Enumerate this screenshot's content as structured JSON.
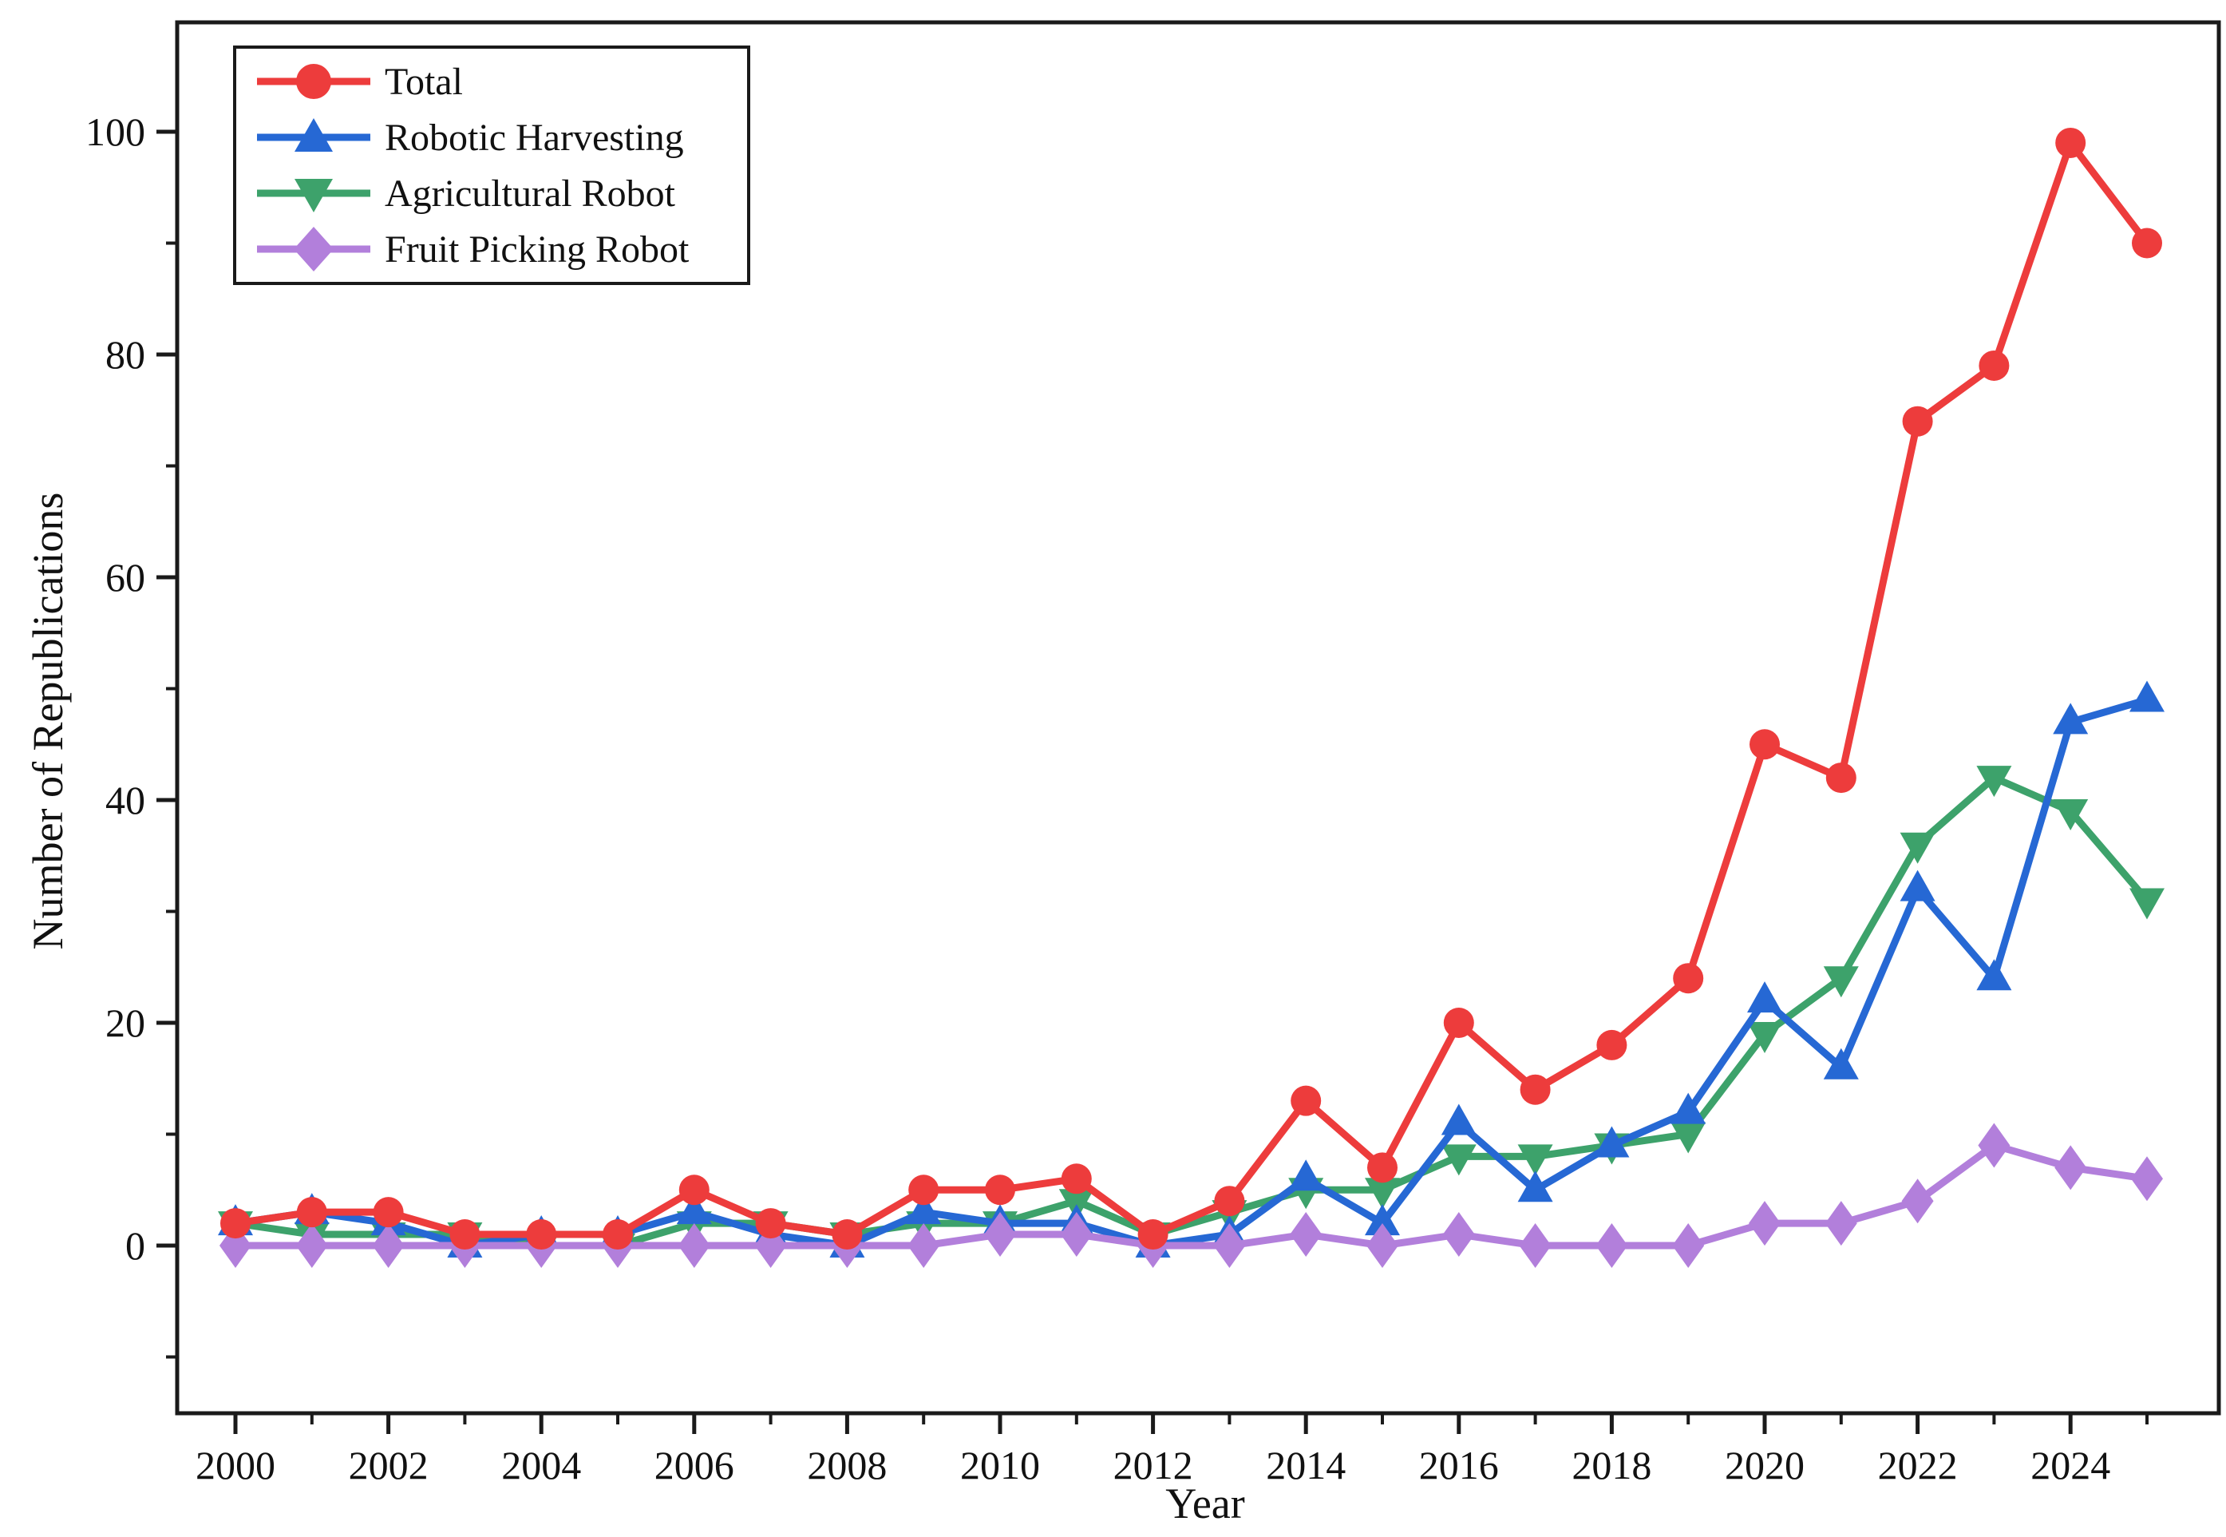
{
  "chart_data": {
    "type": "line",
    "title": "",
    "xlabel": "Year",
    "ylabel": "Number of Republications",
    "x": [
      2000,
      2001,
      2002,
      2003,
      2004,
      2005,
      2006,
      2007,
      2008,
      2009,
      2010,
      2011,
      2012,
      2013,
      2014,
      2015,
      2016,
      2017,
      2018,
      2019,
      2020,
      2021,
      2022,
      2023,
      2024,
      2025
    ],
    "series": [
      {
        "name": "Total",
        "marker": "circle",
        "color": "#ED3C3C",
        "values": [
          2,
          3,
          3,
          1,
          1,
          1,
          5,
          2,
          1,
          5,
          5,
          6,
          1,
          4,
          13,
          7,
          20,
          14,
          18,
          24,
          45,
          42,
          74,
          79,
          99,
          90
        ]
      },
      {
        "name": "Robotic Harvesting",
        "marker": "triangle-up",
        "color": "#2668D4",
        "values": [
          2,
          3,
          2,
          0,
          1,
          1,
          3,
          1,
          0,
          3,
          2,
          2,
          0,
          1,
          6,
          2,
          11,
          5,
          9,
          12,
          22,
          16,
          32,
          24,
          47,
          49
        ]
      },
      {
        "name": "Agricultural Robot",
        "marker": "triangle-down",
        "color": "#3DA26B",
        "values": [
          2,
          1,
          1,
          1,
          0,
          0,
          2,
          2,
          1,
          2,
          2,
          4,
          1,
          3,
          5,
          5,
          8,
          8,
          9,
          10,
          19,
          24,
          36,
          42,
          39,
          31
        ]
      },
      {
        "name": "Fruit Picking Robot",
        "marker": "diamond",
        "color": "#B27FDB",
        "values": [
          0,
          0,
          0,
          0,
          0,
          0,
          0,
          0,
          0,
          0,
          1,
          1,
          0,
          0,
          1,
          0,
          1,
          0,
          0,
          0,
          2,
          2,
          4,
          9,
          7,
          6
        ]
      }
    ],
    "xticks_major": [
      2000,
      2002,
      2004,
      2006,
      2008,
      2010,
      2012,
      2014,
      2016,
      2018,
      2020,
      2022,
      2024
    ],
    "xticks_minor": [
      2001,
      2003,
      2005,
      2007,
      2009,
      2011,
      2013,
      2015,
      2017,
      2019,
      2021,
      2023,
      2025
    ],
    "yticks_major": [
      0,
      20,
      40,
      60,
      80,
      100
    ],
    "yticks_minor": [
      -10,
      10,
      30,
      50,
      70,
      90
    ],
    "ylim": [
      -15,
      110
    ],
    "xlim": [
      1999.2,
      2026
    ],
    "grid": false,
    "legend_position": "top-left"
  }
}
